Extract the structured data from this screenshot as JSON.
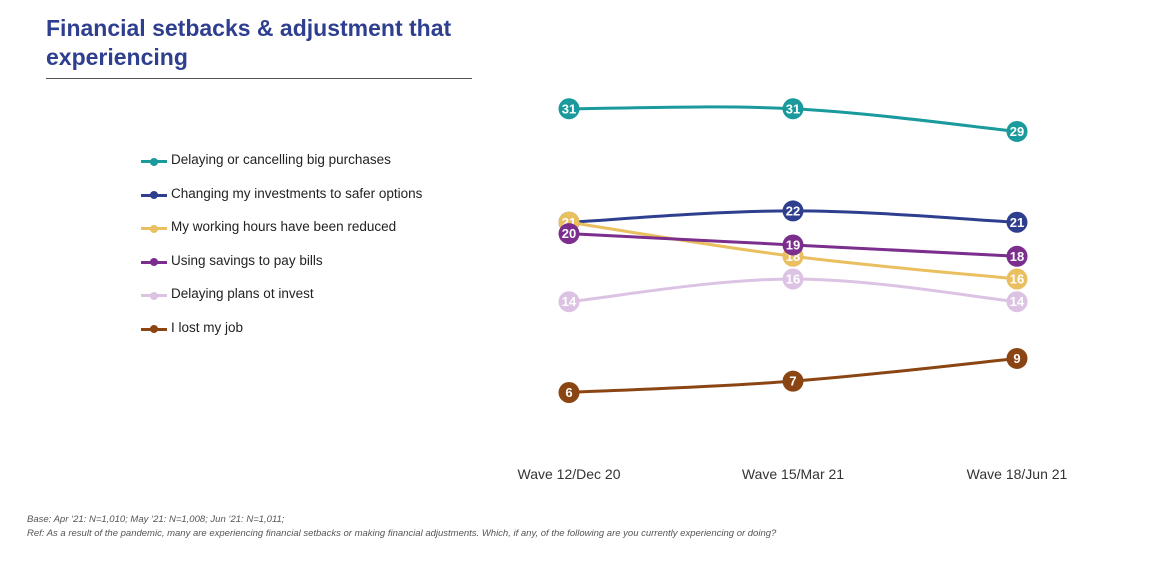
{
  "title": "Financial setbacks & adjustment that experiencing",
  "notes": {
    "base": "Base: Apr ‘21: N=1,010; May ‘21: N=1,008; Jun ‘21: N=1,011;",
    "ref": "Ref:  As a result of the pandemic, many are experiencing financial setbacks or making financial adjustments. Which, if any, of the following are you currently experiencing or doing?"
  },
  "chart_data": {
    "type": "line",
    "title": "Financial setbacks & adjustment that experiencing",
    "x": [
      "Wave 12/Dec 20",
      "Wave 15/Mar 21",
      "Wave 18/Jun 21"
    ],
    "xlabel": "",
    "ylabel": "",
    "ylim": [
      0,
      36
    ],
    "grid": false,
    "legend_position": "left",
    "series": [
      {
        "name": "Delaying or cancelling big purchases",
        "color": "#1a9a9c",
        "values": [
          31,
          31,
          29
        ]
      },
      {
        "name": "Changing my investments to safer options",
        "color": "#2e3f8f",
        "values": [
          21,
          22,
          21
        ]
      },
      {
        "name": "My working hours have been reduced",
        "color": "#e9bf5f",
        "values": [
          21,
          18,
          16
        ]
      },
      {
        "name": "Using savings to pay bills",
        "color": "#7b2e8d",
        "values": [
          20,
          19,
          18
        ]
      },
      {
        "name": "Delaying plans ot invest",
        "color": "#dcc3e3",
        "values": [
          14,
          16,
          14
        ]
      },
      {
        "name": "I lost my job",
        "color": "#8b4513",
        "values": [
          6,
          7,
          9
        ]
      }
    ]
  }
}
